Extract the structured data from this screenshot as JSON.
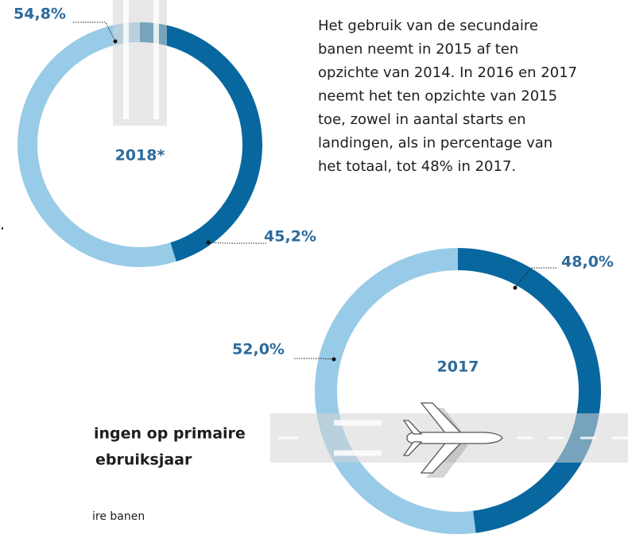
{
  "chart_data": [
    {
      "type": "donut",
      "label": "2018*",
      "values": [
        45.2,
        54.8
      ],
      "value_labels": [
        "45,2%",
        "54,8%"
      ],
      "colors": [
        "#08679f",
        "#98cbe7"
      ]
    },
    {
      "type": "donut",
      "label": "2017",
      "values": [
        48.0,
        52.0
      ],
      "value_labels": [
        "48,0%",
        "52,0%"
      ],
      "colors": [
        "#08679f",
        "#98cbe7"
      ]
    }
  ],
  "paragraph": [
    "Het gebruik van de secundaire",
    "banen neemt in 2015 af ten",
    "opzichte van 2014. In 2016 en 2017",
    "neemt het ten opzichte van 2015",
    "toe, zowel in aantal starts en",
    "landingen, als in percentage van",
    "het totaal, tot 48% in 2017."
  ],
  "fragments": {
    "dot": ".",
    "heading": [
      "ingen op primaire",
      "ebruiksjaar"
    ],
    "legend": "ire banen"
  }
}
